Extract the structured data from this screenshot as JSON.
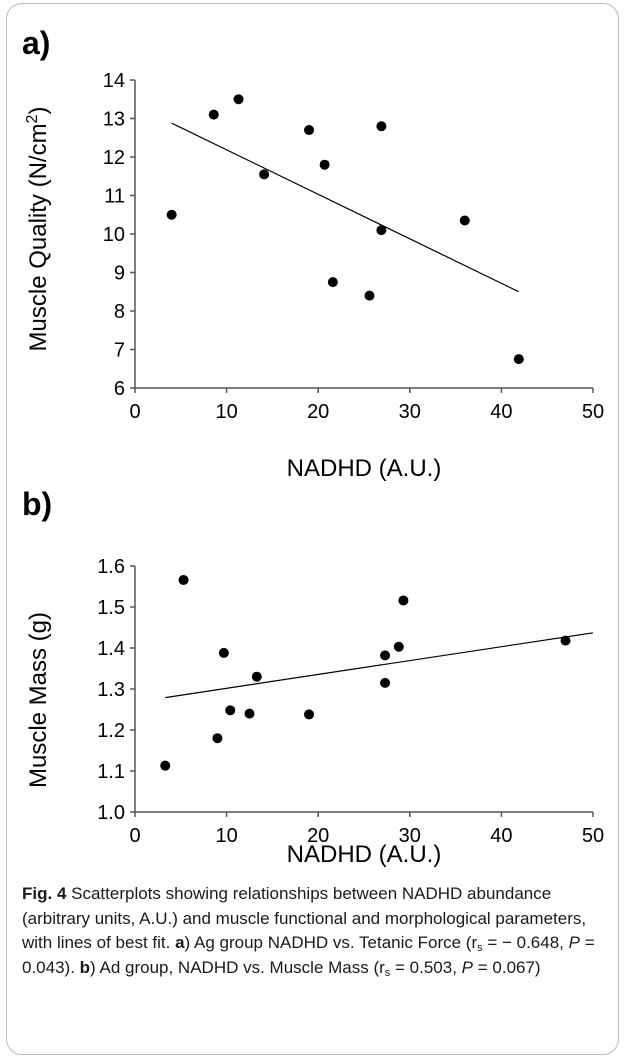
{
  "chart_data": [
    {
      "panel": "a)",
      "type": "scatter",
      "xlabel": "NADHD (A.U.)",
      "ylabel": "Muscle Quality (N/cm2)",
      "xlim": [
        0,
        50
      ],
      "ylim": [
        6,
        14
      ],
      "xticks": [
        "0",
        "10",
        "20",
        "30",
        "40",
        "50"
      ],
      "yticks": [
        "6",
        "7",
        "8",
        "9",
        "10",
        "11",
        "12",
        "13",
        "14"
      ],
      "grid": false,
      "points": [
        {
          "x": 4.0,
          "y": 10.5
        },
        {
          "x": 8.6,
          "y": 13.1
        },
        {
          "x": 11.3,
          "y": 13.5
        },
        {
          "x": 14.1,
          "y": 11.55
        },
        {
          "x": 19.0,
          "y": 12.7
        },
        {
          "x": 20.7,
          "y": 11.8
        },
        {
          "x": 21.6,
          "y": 8.75
        },
        {
          "x": 25.6,
          "y": 8.4
        },
        {
          "x": 26.9,
          "y": 12.8
        },
        {
          "x": 26.9,
          "y": 10.1
        },
        {
          "x": 36.0,
          "y": 10.35
        },
        {
          "x": 41.9,
          "y": 6.75
        }
      ],
      "fit_line": {
        "x": [
          4.0,
          41.9
        ],
        "y": [
          12.88,
          8.5
        ]
      }
    },
    {
      "panel": "b)",
      "type": "scatter",
      "xlabel": "NADHD (A.U.)",
      "ylabel": "Muscle Mass (g)",
      "xlim": [
        0,
        50
      ],
      "ylim": [
        1.0,
        1.6
      ],
      "xticks": [
        "0",
        "10",
        "20",
        "30",
        "40",
        "50"
      ],
      "yticks": [
        "1.0",
        "1.1",
        "1.2",
        "1.3",
        "1.4",
        "1.5",
        "1.6"
      ],
      "grid": false,
      "points": [
        {
          "x": 3.3,
          "y": 1.113
        },
        {
          "x": 5.3,
          "y": 1.566
        },
        {
          "x": 9.0,
          "y": 1.18
        },
        {
          "x": 9.7,
          "y": 1.388
        },
        {
          "x": 10.4,
          "y": 1.248
        },
        {
          "x": 12.5,
          "y": 1.24
        },
        {
          "x": 13.3,
          "y": 1.33
        },
        {
          "x": 19.0,
          "y": 1.238
        },
        {
          "x": 27.3,
          "y": 1.382
        },
        {
          "x": 27.3,
          "y": 1.315
        },
        {
          "x": 28.8,
          "y": 1.403
        },
        {
          "x": 29.3,
          "y": 1.516
        },
        {
          "x": 47.0,
          "y": 1.418
        }
      ],
      "fit_line": {
        "x": [
          3.3,
          50.0
        ],
        "y": [
          1.279,
          1.437
        ]
      }
    }
  ],
  "caption": {
    "fig_label": "Fig. 4",
    "text_1": " Scatterplots showing relationships between NADHD abundance (arbitrary units, A.U.) and muscle functional and morphological parameters, with lines of best fit. ",
    "a_label": "a",
    "text_2": ") Ag group NADHD vs. Tetanic Force (r",
    "sub_1": "s",
    "text_3": " = − 0.648, ",
    "p_1": "P",
    "text_4": " = 0.043). ",
    "b_label": "b",
    "text_5": ") Ad group, NADHD vs. Muscle Mass (r",
    "sub_2": "s",
    "text_6": " = 0.503, ",
    "p_2": "P",
    "text_7": " = 0.067)"
  }
}
